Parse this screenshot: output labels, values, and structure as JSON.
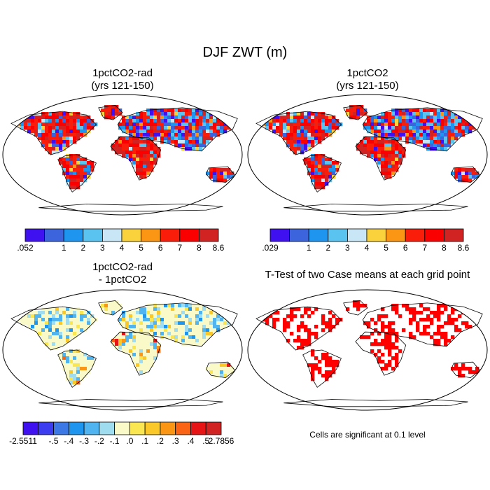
{
  "title": "DJF ZWT (m)",
  "panels": [
    {
      "id": "p1",
      "title": [
        "1pctCO2-rad",
        "(yrs 121-150)"
      ],
      "type": "field"
    },
    {
      "id": "p2",
      "title": [
        "1pctCO2",
        "(yrs 121-150)"
      ],
      "type": "field"
    },
    {
      "id": "p3",
      "title": [
        "1pctCO2-rad",
        "- 1pctCO2"
      ],
      "type": "difference"
    },
    {
      "id": "p4",
      "title": [
        "T-Test of two Case means at each grid point"
      ],
      "type": "significance"
    }
  ],
  "colorbars": [
    {
      "id": "cb1",
      "labels": [
        ".052",
        "1",
        "2",
        "3",
        "4",
        "5",
        "6",
        "7",
        "8",
        "8.6"
      ],
      "colors": [
        "#3f10f0",
        "#3c64dc",
        "#1e96f0",
        "#5ac3f0",
        "#c8e6f5",
        "#fad23c",
        "#fa9614",
        "#fa1e0a",
        "#fa0000",
        "#d22323"
      ]
    },
    {
      "id": "cb2",
      "labels": [
        ".029",
        "1",
        "2",
        "3",
        "4",
        "5",
        "6",
        "7",
        "8",
        "8.6"
      ],
      "colors": [
        "#3f10f0",
        "#3c64dc",
        "#1e96f0",
        "#5ac3f0",
        "#c8e6f5",
        "#fad23c",
        "#fa9614",
        "#fa1e0a",
        "#fa0000",
        "#d22323"
      ]
    },
    {
      "id": "cb3",
      "labels": [
        "-2.5511",
        "-.5",
        "-.4",
        "-.3",
        "-.2",
        "-.1",
        ".0",
        ".1",
        ".2",
        ".3",
        ".4",
        ".5",
        "2.7856"
      ],
      "colors": [
        "#3f10f0",
        "#3c3cf0",
        "#3c78e6",
        "#1e96f0",
        "#50b4f0",
        "#a0dcf0",
        "#fafac8",
        "#fae650",
        "#fac828",
        "#fa9614",
        "#fa6414",
        "#e61414",
        "#d22323"
      ]
    }
  ],
  "significance_note": "Cells are significant at 0.1 level",
  "colors": {
    "land_red": "#e8232a",
    "land_blue": "#3c4cf0",
    "diff_yellow": "#fbf3b4",
    "sig_red": "#ff0000",
    "outline": "#000000"
  }
}
